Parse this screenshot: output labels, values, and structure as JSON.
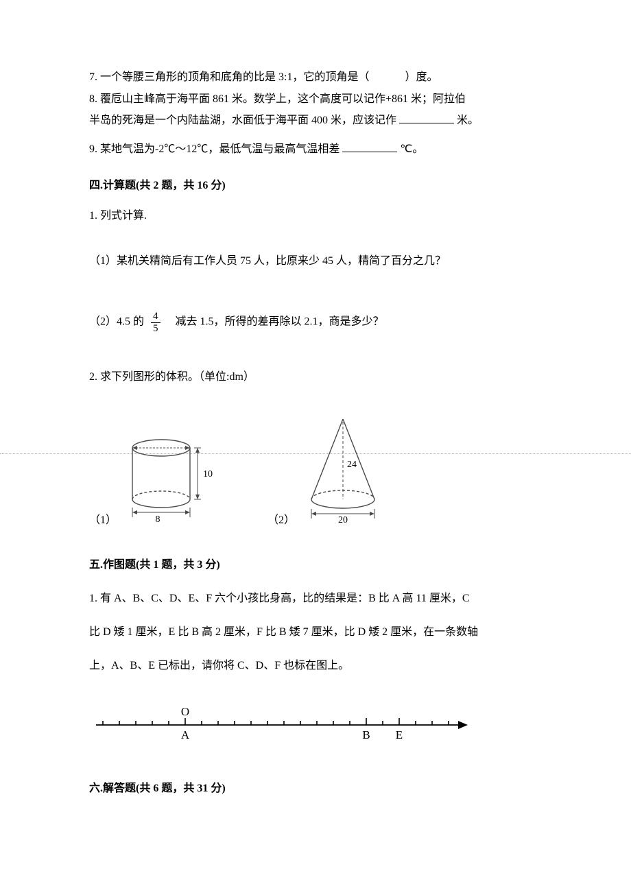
{
  "q7": {
    "text_a": "7. 一个等腰三角形的顶角和底角的比是 3:1，它的顶角是（",
    "text_b": "）度。"
  },
  "q8": {
    "line1": "8. 覆卮山主峰高于海平面 861 米。数学上，这个高度可以记作+861 米；阿拉伯",
    "line2_a": "半岛的死海是一个内陆盐湖，水面低于海平面 400 米，应该记作",
    "line2_b": "米。"
  },
  "q9": {
    "a": "9. 某地气温为-2℃～12℃，最低气温与最高气温相差",
    "b": "℃。"
  },
  "sec4": {
    "title": "四.计算题(共 2 题，共 16 分)",
    "q1": {
      "stem": "1. 列式计算.",
      "p1": "（1）某机关精简后有工作人员 75 人，比原来少 45 人，精简了百分之几？",
      "p2_a": "（2）4.5 的",
      "p2_num": "4",
      "p2_den": "5",
      "p2_b": "减去 1.5，所得的差再除以 2.1，商是多少？"
    },
    "q2": {
      "stem": "2. 求下列图形的体积。（单位:dm）",
      "fig1_label": "（1）",
      "fig2_label": "（2）",
      "cyl": {
        "height_label": "10",
        "diameter_label": "8"
      },
      "cone": {
        "height_label": "24",
        "diameter_label": "20"
      }
    }
  },
  "sec5": {
    "title": "五.作图题(共 1 题，共 3 分)",
    "q1": {
      "line1": "1. 有 A、B、C、D、E、F 六个小孩比身高，比的结果是：B 比 A 高 11 厘米，C",
      "line2": "比 D 矮 1 厘米，E 比 B 高 2 厘米，F 比 B 矮 7 厘米，比 D 矮 2 厘米，在一条数轴",
      "line3": "上，A、B、E 已标出，请你将 C、D、F 也标在图上。"
    },
    "numberline": {
      "O": "O",
      "A": "A",
      "B": "B",
      "E": "E",
      "tick_count": 22,
      "origin_index": 5,
      "A_index": 5,
      "B_index": 16,
      "E_index": 18
    }
  },
  "sec6": {
    "title": "六.解答题(共 6 题，共 31 分)"
  },
  "style": {
    "blank_width_short": "70px",
    "blank_width_med": "80px",
    "paren_gap": "44px",
    "text_color": "#000000",
    "fig_stroke": "#4a4a4a",
    "fig_stroke_width": 1.4
  }
}
